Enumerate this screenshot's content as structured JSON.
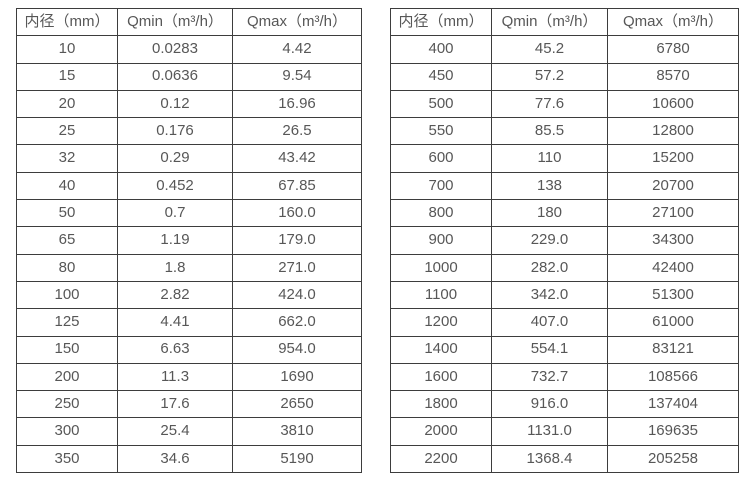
{
  "styles": {
    "background": "#ffffff",
    "border_color": "#3d3d3d",
    "text_color": "#575757"
  },
  "tables": [
    {
      "headers": [
        "内径（mm）",
        "Qmin（m³/h）",
        "Qmax（m³/h）"
      ],
      "rows": [
        [
          "10",
          "0.0283",
          "4.42"
        ],
        [
          "15",
          "0.0636",
          "9.54"
        ],
        [
          "20",
          "0.12",
          "16.96"
        ],
        [
          "25",
          "0.176",
          "26.5"
        ],
        [
          "32",
          "0.29",
          "43.42"
        ],
        [
          "40",
          "0.452",
          "67.85"
        ],
        [
          "50",
          "0.7",
          "160.0"
        ],
        [
          "65",
          "1.19",
          "179.0"
        ],
        [
          "80",
          "1.8",
          "271.0"
        ],
        [
          "100",
          "2.82",
          "424.0"
        ],
        [
          "125",
          "4.41",
          "662.0"
        ],
        [
          "150",
          "6.63",
          "954.0"
        ],
        [
          "200",
          "11.3",
          "1690"
        ],
        [
          "250",
          "17.6",
          "2650"
        ],
        [
          "300",
          "25.4",
          "3810"
        ],
        [
          "350",
          "34.6",
          "5190"
        ]
      ]
    },
    {
      "headers": [
        "内径（mm）",
        "Qmin（m³/h）",
        "Qmax（m³/h）"
      ],
      "rows": [
        [
          "400",
          "45.2",
          "6780"
        ],
        [
          "450",
          "57.2",
          "8570"
        ],
        [
          "500",
          "77.6",
          "10600"
        ],
        [
          "550",
          "85.5",
          "12800"
        ],
        [
          "600",
          "110",
          "15200"
        ],
        [
          "700",
          "138",
          "20700"
        ],
        [
          "800",
          "180",
          "27100"
        ],
        [
          "900",
          "229.0",
          "34300"
        ],
        [
          "1000",
          "282.0",
          "42400"
        ],
        [
          "1100",
          "342.0",
          "51300"
        ],
        [
          "1200",
          "407.0",
          "61000"
        ],
        [
          "1400",
          "554.1",
          "83121"
        ],
        [
          "1600",
          "732.7",
          "108566"
        ],
        [
          "1800",
          "916.0",
          "137404"
        ],
        [
          "2000",
          "1131.0",
          "169635"
        ],
        [
          "2200",
          "1368.4",
          "205258"
        ]
      ]
    }
  ],
  "chart_data": [
    {
      "type": "table",
      "columns": [
        "内径（mm）",
        "Qmin（m³/h）",
        "Qmax（m³/h）"
      ],
      "inner_diameter_mm": [
        10,
        15,
        20,
        25,
        32,
        40,
        50,
        65,
        80,
        100,
        125,
        150,
        200,
        250,
        300,
        350
      ],
      "qmin_m3_per_h": [
        0.0283,
        0.0636,
        0.12,
        0.176,
        0.29,
        0.452,
        0.7,
        1.19,
        1.8,
        2.82,
        4.41,
        6.63,
        11.3,
        17.6,
        25.4,
        34.6
      ],
      "qmax_m3_per_h": [
        4.42,
        9.54,
        16.96,
        26.5,
        43.42,
        67.85,
        160.0,
        179.0,
        271.0,
        424.0,
        662.0,
        954.0,
        1690,
        2650,
        3810,
        5190
      ]
    },
    {
      "type": "table",
      "columns": [
        "内径（mm）",
        "Qmin（m³/h）",
        "Qmax（m³/h）"
      ],
      "inner_diameter_mm": [
        400,
        450,
        500,
        550,
        600,
        700,
        800,
        900,
        1000,
        1100,
        1200,
        1400,
        1600,
        1800,
        2000,
        2200
      ],
      "qmin_m3_per_h": [
        45.2,
        57.2,
        77.6,
        85.5,
        110,
        138,
        180,
        229.0,
        282.0,
        342.0,
        407.0,
        554.1,
        732.7,
        916.0,
        1131.0,
        1368.4
      ],
      "qmax_m3_per_h": [
        6780,
        8570,
        10600,
        12800,
        15200,
        20700,
        27100,
        34300,
        42400,
        51300,
        61000,
        83121,
        108566,
        137404,
        169635,
        205258
      ]
    }
  ]
}
